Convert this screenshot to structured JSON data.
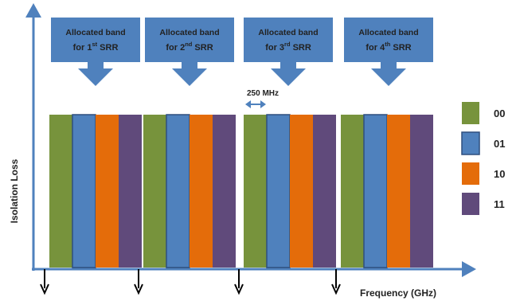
{
  "colors": {
    "axis": "#4f81bd",
    "callout_fill": "#4f81bd",
    "callout_text": "#1a1a1a",
    "bar_00": "#77933c",
    "bar_01": "#4f81bd",
    "bar_10": "#e46c0a",
    "bar_11": "#604a7b",
    "bar_edge": "#2f4f7f"
  },
  "axes": {
    "y_title": "Isolation Loss",
    "x_title": "Frequency (GHz)"
  },
  "callouts": [
    {
      "line1": "Allocated band",
      "line2_prefix": "for ",
      "ordinal_num": "1",
      "ordinal_sup": "st",
      "line2_suffix": " SRR"
    },
    {
      "line1": "Allocated band",
      "line2_prefix": "for ",
      "ordinal_num": "2",
      "ordinal_sup": "nd",
      "line2_suffix": " SRR"
    },
    {
      "line1": "Allocated band",
      "line2_prefix": "for ",
      "ordinal_num": "3",
      "ordinal_sup": "rd",
      "line2_suffix": " SRR"
    },
    {
      "line1": "Allocated band",
      "line2_prefix": "for ",
      "ordinal_num": "4",
      "ordinal_sup": "th",
      "line2_suffix": " SRR"
    }
  ],
  "bandwidth_label": "250 MHz",
  "legend": [
    {
      "code": "00",
      "color": "#77933c"
    },
    {
      "code": "01",
      "color": "#4f81bd"
    },
    {
      "code": "10",
      "color": "#e46c0a"
    },
    {
      "code": "11",
      "color": "#604a7b"
    }
  ],
  "bands": [
    {
      "bars": [
        "00",
        "01",
        "10",
        "11"
      ]
    },
    {
      "bars": [
        "00",
        "01",
        "10",
        "11"
      ]
    },
    {
      "bars": [
        "00",
        "01",
        "10",
        "11"
      ]
    },
    {
      "bars": [
        "00",
        "01",
        "10",
        "11"
      ]
    }
  ]
}
